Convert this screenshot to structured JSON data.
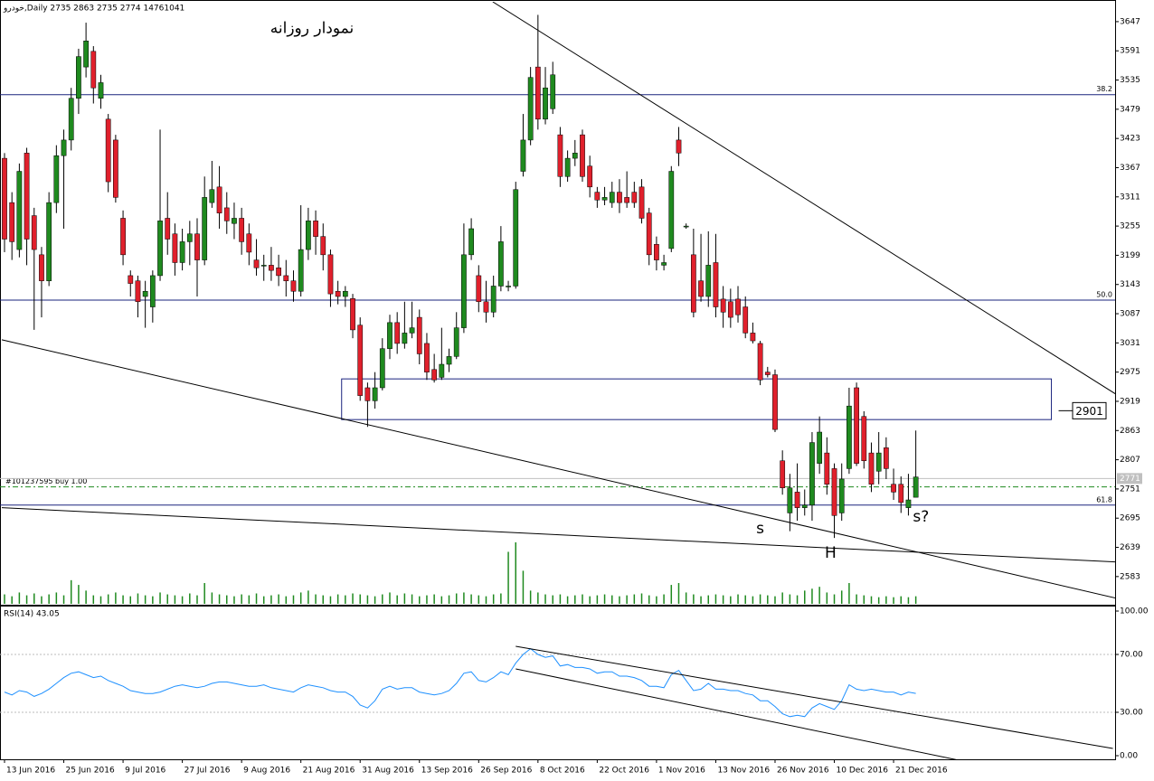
{
  "chart_data": [
    {
      "type": "candlestick",
      "title": "نمودار روزانه",
      "header": "خودرو,Daily  2735 2863 2735 2774  14761041",
      "up_color": "#1f8a1f",
      "down_color": "#e0202c",
      "level_color": "#1a237e",
      "xlim": [
        -0.61,
        149.9
      ],
      "ylim": [
        2529,
        3685
      ],
      "xticks": [
        {
          "value": 0,
          "label": "13 Jun 2016"
        },
        {
          "value": 8,
          "label": "25 Jun 2016"
        },
        {
          "value": 16,
          "label": "9 Jul 2016"
        },
        {
          "value": 24,
          "label": "27 Jul 2016"
        },
        {
          "value": 32,
          "label": "9 Aug 2016"
        },
        {
          "value": 40,
          "label": "21 Aug 2016"
        },
        {
          "value": 48,
          "label": "31 Aug 2016"
        },
        {
          "value": 56,
          "label": "13 Sep 2016"
        },
        {
          "value": 64,
          "label": "26 Sep 2016"
        },
        {
          "value": 72,
          "label": "8 Oct 2016"
        },
        {
          "value": 80,
          "label": "22 Oct 2016"
        },
        {
          "value": 88,
          "label": "1 Nov 2016"
        },
        {
          "value": 96,
          "label": "13 Nov 2016"
        },
        {
          "value": 104,
          "label": "26 Nov 2016"
        },
        {
          "value": 112,
          "label": "10 Dec 2016"
        },
        {
          "value": 120,
          "label": "21 Dec 2016"
        }
      ],
      "yticks": [
        2583,
        2639,
        2695,
        2751,
        2807,
        2863,
        2919,
        2975,
        3031,
        3087,
        3143,
        3199,
        3255,
        3311,
        3367,
        3423,
        3479,
        3535,
        3591,
        3647
      ],
      "candles": [
        [
          3385,
          3395,
          3205,
          3230
        ],
        [
          3300,
          3320,
          3190,
          3225
        ],
        [
          3210,
          3375,
          3195,
          3360
        ],
        [
          3395,
          3405,
          3180,
          3230
        ],
        [
          3275,
          3290,
          3056,
          3210
        ],
        [
          3200,
          3215,
          3080,
          3150
        ],
        [
          3150,
          3320,
          3140,
          3300
        ],
        [
          3300,
          3410,
          3280,
          3390
        ],
        [
          3390,
          3440,
          3250,
          3420
        ],
        [
          3420,
          3520,
          3400,
          3500
        ],
        [
          3500,
          3595,
          3470,
          3580
        ],
        [
          3560,
          3645,
          3540,
          3610
        ],
        [
          3590,
          3600,
          3490,
          3520
        ],
        [
          3500,
          3545,
          3480,
          3530
        ],
        [
          3460,
          3470,
          3320,
          3340
        ],
        [
          3420,
          3430,
          3300,
          3310
        ],
        [
          3270,
          3285,
          3180,
          3200
        ],
        [
          3160,
          3170,
          3120,
          3145
        ],
        [
          3150,
          3160,
          3080,
          3110
        ],
        [
          3120,
          3150,
          3060,
          3130
        ],
        [
          3100,
          3170,
          3070,
          3160
        ],
        [
          3160,
          3440,
          3150,
          3265
        ],
        [
          3270,
          3320,
          3200,
          3230
        ],
        [
          3240,
          3260,
          3160,
          3185
        ],
        [
          3185,
          3250,
          3170,
          3225
        ],
        [
          3225,
          3265,
          3180,
          3240
        ],
        [
          3240,
          3270,
          3120,
          3190
        ],
        [
          3190,
          3350,
          3180,
          3310
        ],
        [
          3300,
          3380,
          3290,
          3325
        ],
        [
          3330,
          3370,
          3250,
          3280
        ],
        [
          3290,
          3320,
          3240,
          3265
        ],
        [
          3260,
          3300,
          3230,
          3270
        ],
        [
          3270,
          3290,
          3200,
          3225
        ],
        [
          3240,
          3260,
          3180,
          3205
        ],
        [
          3190,
          3230,
          3160,
          3175
        ],
        [
          3180,
          3200,
          3150,
          3180
        ],
        [
          3180,
          3215,
          3150,
          3170
        ],
        [
          3175,
          3200,
          3140,
          3160
        ],
        [
          3160,
          3190,
          3120,
          3150
        ],
        [
          3150,
          3170,
          3110,
          3130
        ],
        [
          3130,
          3295,
          3120,
          3210
        ],
        [
          3210,
          3290,
          3190,
          3265
        ],
        [
          3265,
          3285,
          3200,
          3235
        ],
        [
          3235,
          3260,
          3170,
          3200
        ],
        [
          3200,
          3210,
          3100,
          3125
        ],
        [
          3130,
          3150,
          3105,
          3120
        ],
        [
          3120,
          3140,
          3100,
          3130
        ],
        [
          3116,
          3125,
          3040,
          3056
        ],
        [
          3065,
          3080,
          2920,
          2930
        ],
        [
          2945,
          2955,
          2870,
          2920
        ],
        [
          2920,
          2975,
          2905,
          2945
        ],
        [
          2945,
          3040,
          2940,
          3020
        ],
        [
          3020,
          3085,
          3000,
          3070
        ],
        [
          3070,
          3090,
          3010,
          3030
        ],
        [
          3030,
          3110,
          3020,
          3050
        ],
        [
          3050,
          3110,
          3040,
          3060
        ],
        [
          3080,
          3095,
          2990,
          3010
        ],
        [
          3030,
          3050,
          2960,
          2975
        ],
        [
          2980,
          3010,
          2955,
          2960
        ],
        [
          2965,
          3060,
          2960,
          2990
        ],
        [
          2990,
          3020,
          2975,
          3005
        ],
        [
          3005,
          3090,
          3000,
          3060
        ],
        [
          3060,
          3260,
          3050,
          3200
        ],
        [
          3200,
          3270,
          3190,
          3250
        ],
        [
          3160,
          3180,
          3090,
          3110
        ],
        [
          3110,
          3150,
          3070,
          3090
        ],
        [
          3090,
          3160,
          3080,
          3140
        ],
        [
          3140,
          3255,
          3130,
          3225
        ],
        [
          3140,
          3150,
          3130,
          3140
        ],
        [
          3140,
          3340,
          3135,
          3325
        ],
        [
          3360,
          3470,
          3350,
          3420
        ],
        [
          3420,
          3560,
          3410,
          3540
        ],
        [
          3560,
          3660,
          3440,
          3460
        ],
        [
          3460,
          3560,
          3450,
          3520
        ],
        [
          3480,
          3570,
          3470,
          3545
        ],
        [
          3430,
          3445,
          3330,
          3350
        ],
        [
          3350,
          3400,
          3340,
          3385
        ],
        [
          3385,
          3420,
          3370,
          3395
        ],
        [
          3430,
          3440,
          3340,
          3350
        ],
        [
          3370,
          3390,
          3310,
          3330
        ],
        [
          3320,
          3330,
          3290,
          3305
        ],
        [
          3305,
          3330,
          3295,
          3310
        ],
        [
          3300,
          3340,
          3290,
          3320
        ],
        [
          3320,
          3345,
          3280,
          3300
        ],
        [
          3310,
          3360,
          3290,
          3300
        ],
        [
          3320,
          3340,
          3290,
          3300
        ],
        [
          3330,
          3345,
          3260,
          3270
        ],
        [
          3280,
          3290,
          3180,
          3200
        ],
        [
          3220,
          3235,
          3170,
          3190
        ],
        [
          3180,
          3200,
          3170,
          3185
        ],
        [
          3212,
          3370,
          3205,
          3360
        ],
        [
          3420,
          3445,
          3370,
          3395
        ],
        [
          3255,
          3260,
          3250,
          3255
        ],
        [
          3200,
          3250,
          3080,
          3090
        ],
        [
          3150,
          3240,
          3110,
          3120
        ],
        [
          3120,
          3245,
          3100,
          3180
        ],
        [
          3185,
          3240,
          3080,
          3100
        ],
        [
          3115,
          3140,
          3060,
          3090
        ],
        [
          3110,
          3135,
          3060,
          3080
        ],
        [
          3115,
          3140,
          3070,
          3085
        ],
        [
          3100,
          3120,
          3040,
          3050
        ],
        [
          3050,
          3070,
          3030,
          3035
        ],
        [
          3030,
          3035,
          2950,
          2960
        ],
        [
          2975,
          2985,
          2965,
          2970
        ],
        [
          2970,
          2980,
          2860,
          2865
        ],
        [
          2805,
          2825,
          2740,
          2753
        ],
        [
          2705,
          2780,
          2670,
          2753
        ],
        [
          2745,
          2800,
          2690,
          2715
        ],
        [
          2715,
          2750,
          2700,
          2720
        ],
        [
          2720,
          2860,
          2690,
          2840
        ],
        [
          2800,
          2890,
          2780,
          2860
        ],
        [
          2820,
          2850,
          2740,
          2760
        ],
        [
          2790,
          2800,
          2657,
          2700
        ],
        [
          2705,
          2800,
          2690,
          2770
        ],
        [
          2790,
          2945,
          2780,
          2910
        ],
        [
          2945,
          2955,
          2795,
          2800
        ],
        [
          2890,
          2900,
          2790,
          2805
        ],
        [
          2820,
          2840,
          2745,
          2760
        ],
        [
          2785,
          2860,
          2760,
          2820
        ],
        [
          2830,
          2850,
          2770,
          2790
        ],
        [
          2760,
          2790,
          2730,
          2745
        ],
        [
          2760,
          2775,
          2705,
          2725
        ],
        [
          2715,
          2780,
          2700,
          2730
        ],
        [
          2735,
          2863,
          2735,
          2774
        ]
      ],
      "volume": [
        10,
        8,
        12,
        9,
        11,
        8,
        10,
        12,
        9,
        25,
        20,
        14,
        9,
        8,
        10,
        12,
        9,
        8,
        11,
        9,
        8,
        12,
        10,
        9,
        8,
        11,
        9,
        22,
        12,
        10,
        9,
        8,
        10,
        9,
        11,
        8,
        9,
        10,
        8,
        9,
        12,
        14,
        10,
        9,
        8,
        10,
        9,
        11,
        10,
        9,
        8,
        10,
        12,
        9,
        11,
        10,
        8,
        9,
        10,
        8,
        9,
        11,
        12,
        10,
        9,
        8,
        10,
        11,
        55,
        65,
        35,
        14,
        12,
        10,
        9,
        10,
        8,
        9,
        10,
        8,
        9,
        10,
        9,
        8,
        9,
        10,
        11,
        9,
        8,
        10,
        20,
        22,
        12,
        10,
        8,
        9,
        10,
        9,
        8,
        10,
        9,
        8,
        10,
        9,
        8,
        12,
        10,
        9,
        14,
        16,
        18,
        12,
        10,
        14,
        22,
        10,
        9,
        8,
        7,
        8,
        7,
        8,
        7,
        8
      ],
      "levels": [
        {
          "value": 3507,
          "label": "38.2"
        },
        {
          "value": 3113,
          "label": "50.0"
        },
        {
          "value": 2720,
          "label": "61.8"
        }
      ],
      "order": {
        "value": 2755,
        "label": "#101237595 buy 1.00"
      },
      "last_price": 2771,
      "zone": {
        "x": [
          45.5,
          141.3
        ],
        "y": [
          2884,
          2962
        ],
        "label": 2901
      },
      "trendlines": [
        {
          "x": [
            65.9,
            150.2
          ],
          "y": [
            3685,
            2931
          ]
        },
        {
          "x": [
            -0.37,
            150.2
          ],
          "y": [
            3037,
            2541
          ]
        },
        {
          "x": [
            -0.37,
            150.2
          ],
          "y": [
            2715,
            2611
          ]
        }
      ],
      "annotations": [
        {
          "text": "s",
          "x": 102,
          "y": 2675
        },
        {
          "text": "H",
          "x": 111.5,
          "y": 2628
        },
        {
          "text": "s?",
          "x": 123.7,
          "y": 2697
        }
      ]
    },
    {
      "type": "line",
      "label": "RSI(14) 43.05",
      "color": "#1e90ff",
      "xlim": [
        -0.61,
        149.9
      ],
      "ylim": [
        0,
        100
      ],
      "yticks": [
        {
          "value": 0,
          "label": "0.00"
        },
        {
          "value": 30,
          "label": "30.00"
        },
        {
          "value": 70,
          "label": "70.00"
        },
        {
          "value": 100,
          "label": "100.00"
        }
      ],
      "levels": [
        30,
        70
      ],
      "values": [
        44,
        42,
        45,
        44,
        41,
        43,
        46,
        50,
        54,
        57,
        58,
        56,
        54,
        55,
        52,
        50,
        48,
        45,
        44,
        43,
        43,
        44,
        46,
        48,
        49,
        48,
        47,
        48,
        50,
        51,
        51,
        50,
        49,
        48,
        48,
        49,
        47,
        46,
        45,
        44,
        47,
        49,
        48,
        47,
        45,
        44,
        44,
        41,
        35,
        33,
        38,
        46,
        48,
        46,
        47,
        47,
        44,
        43,
        42,
        43,
        45,
        50,
        57,
        58,
        52,
        51,
        54,
        58,
        56,
        64,
        70,
        74,
        70,
        68,
        69,
        62,
        63,
        61,
        61,
        60,
        57,
        58,
        58,
        55,
        55,
        54,
        52,
        48,
        48,
        47,
        56,
        59,
        52,
        45,
        46,
        50,
        46,
        46,
        45,
        45,
        43,
        42,
        38,
        38,
        34,
        29,
        27,
        28,
        27,
        33,
        36,
        34,
        32,
        38,
        49,
        46,
        45,
        46,
        45,
        44,
        44,
        42,
        44,
        43.05
      ],
      "trendlines": [
        {
          "x": [
            69,
            149.6
          ],
          "y": [
            75.6,
            5
          ]
        },
        {
          "x": [
            69,
            129.4
          ],
          "y": [
            60,
            -3.75
          ]
        }
      ]
    }
  ]
}
